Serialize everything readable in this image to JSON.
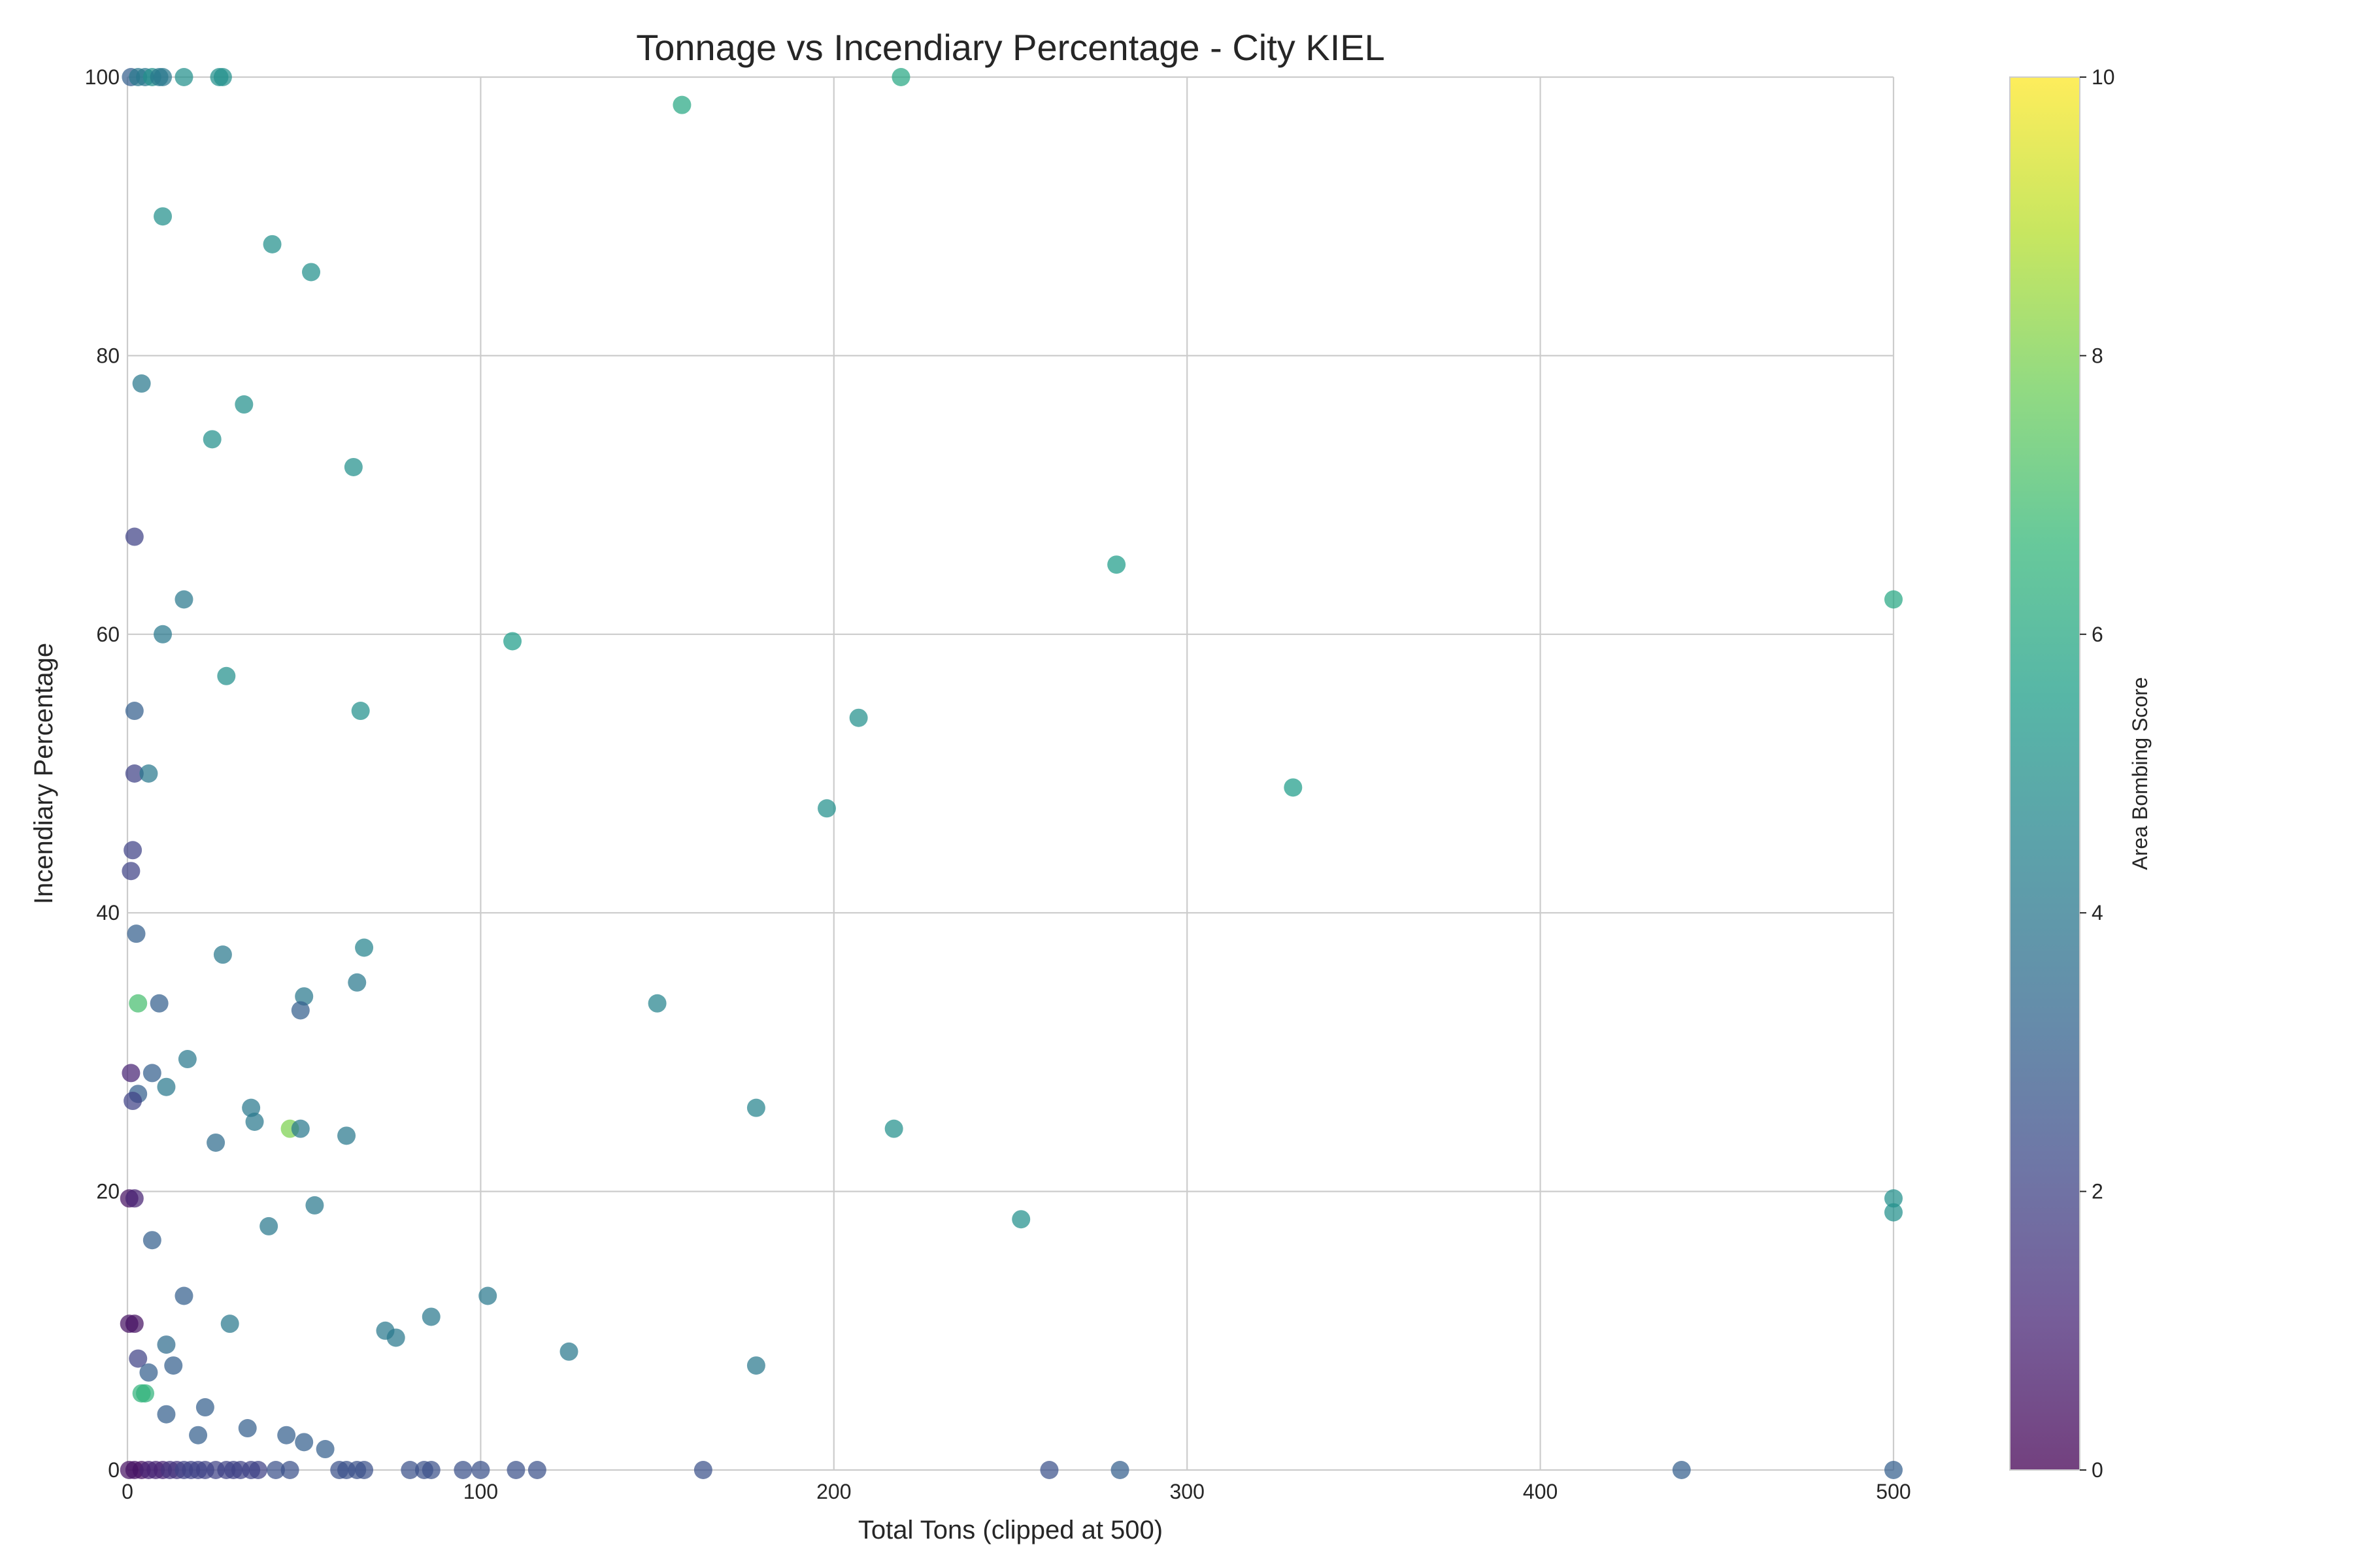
{
  "chart_data": {
    "type": "scatter",
    "title": "Tonnage vs Incendiary Percentage - City KIEL",
    "xlabel": "Total Tons (clipped at 500)",
    "ylabel": "Incendiary Percentage",
    "xlim": [
      0,
      500
    ],
    "ylim": [
      0,
      100
    ],
    "xticks": [
      0,
      100,
      200,
      300,
      400,
      500
    ],
    "yticks": [
      0,
      20,
      40,
      60,
      80,
      100
    ],
    "grid": true,
    "colormap": "viridis",
    "colorbar": {
      "label": "Area Bombing Score",
      "range": [
        0,
        10
      ],
      "ticks": [
        0,
        2,
        4,
        6,
        8,
        10
      ],
      "colors": [
        "#440154",
        "#482878",
        "#3e4a89",
        "#31688e",
        "#26828e",
        "#1f9e89",
        "#35b779",
        "#6ece58",
        "#b5de2b",
        "#fde725"
      ]
    },
    "points": [
      {
        "x": 1,
        "y": 100,
        "c": 3
      },
      {
        "x": 3,
        "y": 100,
        "c": 4
      },
      {
        "x": 5,
        "y": 100,
        "c": 4
      },
      {
        "x": 7,
        "y": 100,
        "c": 5
      },
      {
        "x": 9,
        "y": 100,
        "c": 4
      },
      {
        "x": 10,
        "y": 100,
        "c": 4
      },
      {
        "x": 16,
        "y": 100,
        "c": 5
      },
      {
        "x": 26,
        "y": 100,
        "c": 5
      },
      {
        "x": 27,
        "y": 100,
        "c": 5
      },
      {
        "x": 219,
        "y": 100,
        "c": 6
      },
      {
        "x": 157,
        "y": 98,
        "c": 6
      },
      {
        "x": 10,
        "y": 90,
        "c": 5
      },
      {
        "x": 41,
        "y": 88,
        "c": 5
      },
      {
        "x": 52,
        "y": 86,
        "c": 5
      },
      {
        "x": 4,
        "y": 78,
        "c": 4
      },
      {
        "x": 33,
        "y": 76.5,
        "c": 5
      },
      {
        "x": 24,
        "y": 74,
        "c": 5
      },
      {
        "x": 64,
        "y": 72,
        "c": 5
      },
      {
        "x": 2,
        "y": 67,
        "c": 2
      },
      {
        "x": 280,
        "y": 65,
        "c": 5.5
      },
      {
        "x": 16,
        "y": 62.5,
        "c": 4
      },
      {
        "x": 500,
        "y": 62.5,
        "c": 6
      },
      {
        "x": 10,
        "y": 60,
        "c": 4
      },
      {
        "x": 109,
        "y": 59.5,
        "c": 5.5
      },
      {
        "x": 28,
        "y": 57,
        "c": 5
      },
      {
        "x": 2,
        "y": 54.5,
        "c": 3
      },
      {
        "x": 66,
        "y": 54.5,
        "c": 5
      },
      {
        "x": 207,
        "y": 54,
        "c": 5
      },
      {
        "x": 2,
        "y": 50,
        "c": 2
      },
      {
        "x": 6,
        "y": 50,
        "c": 4
      },
      {
        "x": 330,
        "y": 49,
        "c": 5.5
      },
      {
        "x": 198,
        "y": 47.5,
        "c": 5
      },
      {
        "x": 1.5,
        "y": 44.5,
        "c": 2
      },
      {
        "x": 1,
        "y": 43,
        "c": 2
      },
      {
        "x": 2.5,
        "y": 38.5,
        "c": 3
      },
      {
        "x": 27,
        "y": 37,
        "c": 4
      },
      {
        "x": 67,
        "y": 37.5,
        "c": 4.5
      },
      {
        "x": 65,
        "y": 35,
        "c": 4
      },
      {
        "x": 50,
        "y": 34,
        "c": 4
      },
      {
        "x": 150,
        "y": 33.5,
        "c": 4.5
      },
      {
        "x": 3,
        "y": 33.5,
        "c": 7
      },
      {
        "x": 9,
        "y": 33.5,
        "c": 3
      },
      {
        "x": 49,
        "y": 33,
        "c": 3
      },
      {
        "x": 17,
        "y": 29.5,
        "c": 4
      },
      {
        "x": 1,
        "y": 28.5,
        "c": 1
      },
      {
        "x": 7,
        "y": 28.5,
        "c": 3
      },
      {
        "x": 11,
        "y": 27.5,
        "c": 4
      },
      {
        "x": 3,
        "y": 27,
        "c": 3
      },
      {
        "x": 1.5,
        "y": 26.5,
        "c": 2
      },
      {
        "x": 35,
        "y": 26,
        "c": 4
      },
      {
        "x": 178,
        "y": 26,
        "c": 4.5
      },
      {
        "x": 36,
        "y": 25,
        "c": 4
      },
      {
        "x": 46,
        "y": 24.5,
        "c": 8
      },
      {
        "x": 49,
        "y": 24.5,
        "c": 4
      },
      {
        "x": 217,
        "y": 24.5,
        "c": 5
      },
      {
        "x": 62,
        "y": 24,
        "c": 4
      },
      {
        "x": 25,
        "y": 23.5,
        "c": 3.5
      },
      {
        "x": 0.5,
        "y": 19.5,
        "c": 0.5
      },
      {
        "x": 2,
        "y": 19.5,
        "c": 1
      },
      {
        "x": 500,
        "y": 19.5,
        "c": 5
      },
      {
        "x": 53,
        "y": 19,
        "c": 4
      },
      {
        "x": 253,
        "y": 18,
        "c": 5
      },
      {
        "x": 500,
        "y": 18.5,
        "c": 5
      },
      {
        "x": 40,
        "y": 17.5,
        "c": 4
      },
      {
        "x": 7,
        "y": 16.5,
        "c": 3
      },
      {
        "x": 102,
        "y": 12.5,
        "c": 4
      },
      {
        "x": 16,
        "y": 12.5,
        "c": 3
      },
      {
        "x": 0.5,
        "y": 10.5,
        "c": 0.5
      },
      {
        "x": 2,
        "y": 10.5,
        "c": 0.5
      },
      {
        "x": 29,
        "y": 10.5,
        "c": 4
      },
      {
        "x": 86,
        "y": 11,
        "c": 4
      },
      {
        "x": 73,
        "y": 10,
        "c": 4
      },
      {
        "x": 76,
        "y": 9.5,
        "c": 4
      },
      {
        "x": 11,
        "y": 9,
        "c": 3.5
      },
      {
        "x": 125,
        "y": 8.5,
        "c": 4
      },
      {
        "x": 3,
        "y": 8,
        "c": 2
      },
      {
        "x": 13,
        "y": 7.5,
        "c": 3
      },
      {
        "x": 178,
        "y": 7.5,
        "c": 4
      },
      {
        "x": 6,
        "y": 7,
        "c": 3
      },
      {
        "x": 4,
        "y": 5.5,
        "c": 6.5
      },
      {
        "x": 5,
        "y": 5.5,
        "c": 6.5
      },
      {
        "x": 22,
        "y": 4.5,
        "c": 3
      },
      {
        "x": 11,
        "y": 4,
        "c": 3
      },
      {
        "x": 34,
        "y": 3,
        "c": 3
      },
      {
        "x": 45,
        "y": 2.5,
        "c": 3
      },
      {
        "x": 20,
        "y": 2.5,
        "c": 3
      },
      {
        "x": 50,
        "y": 2,
        "c": 3
      },
      {
        "x": 56,
        "y": 1.5,
        "c": 3
      },
      {
        "x": 0.5,
        "y": 0,
        "c": 0.5
      },
      {
        "x": 2,
        "y": 0,
        "c": 0.5
      },
      {
        "x": 4,
        "y": 0,
        "c": 0.5
      },
      {
        "x": 6,
        "y": 0,
        "c": 1
      },
      {
        "x": 8,
        "y": 0,
        "c": 1
      },
      {
        "x": 10,
        "y": 0,
        "c": 1
      },
      {
        "x": 12,
        "y": 0,
        "c": 1.5
      },
      {
        "x": 14,
        "y": 0,
        "c": 1.5
      },
      {
        "x": 16,
        "y": 0,
        "c": 2
      },
      {
        "x": 18,
        "y": 0,
        "c": 2
      },
      {
        "x": 20,
        "y": 0,
        "c": 2
      },
      {
        "x": 22,
        "y": 0,
        "c": 2
      },
      {
        "x": 25,
        "y": 0,
        "c": 2
      },
      {
        "x": 28,
        "y": 0,
        "c": 2
      },
      {
        "x": 30,
        "y": 0,
        "c": 2
      },
      {
        "x": 32,
        "y": 0,
        "c": 2
      },
      {
        "x": 35,
        "y": 0,
        "c": 2
      },
      {
        "x": 37,
        "y": 0,
        "c": 2
      },
      {
        "x": 42,
        "y": 0,
        "c": 2.5
      },
      {
        "x": 46,
        "y": 0,
        "c": 2.5
      },
      {
        "x": 60,
        "y": 0,
        "c": 2.5
      },
      {
        "x": 62,
        "y": 0,
        "c": 2.5
      },
      {
        "x": 65,
        "y": 0,
        "c": 2.5
      },
      {
        "x": 67,
        "y": 0,
        "c": 2.5
      },
      {
        "x": 80,
        "y": 0,
        "c": 2.5
      },
      {
        "x": 84,
        "y": 0,
        "c": 2.5
      },
      {
        "x": 86,
        "y": 0,
        "c": 2.5
      },
      {
        "x": 95,
        "y": 0,
        "c": 2.5
      },
      {
        "x": 100,
        "y": 0,
        "c": 2.5
      },
      {
        "x": 110,
        "y": 0,
        "c": 2.5
      },
      {
        "x": 116,
        "y": 0,
        "c": 2.5
      },
      {
        "x": 163,
        "y": 0,
        "c": 2.5
      },
      {
        "x": 261,
        "y": 0,
        "c": 2.5
      },
      {
        "x": 281,
        "y": 0,
        "c": 3
      },
      {
        "x": 440,
        "y": 0,
        "c": 3
      },
      {
        "x": 500,
        "y": 0,
        "c": 3
      }
    ]
  }
}
